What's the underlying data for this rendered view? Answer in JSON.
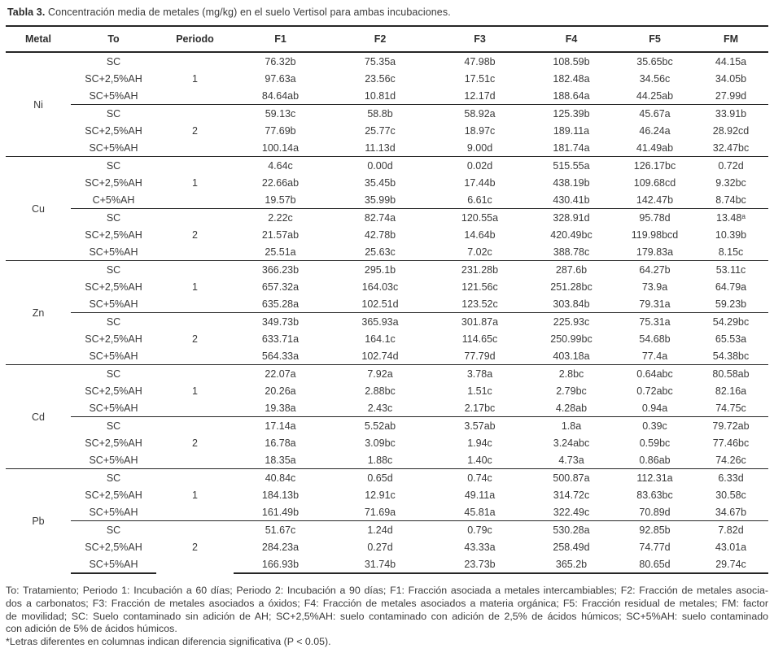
{
  "title": {
    "label": "Tabla 3.",
    "text": "Concentración media de metales (mg/kg) en el suelo Vertisol para ambas incubaciones."
  },
  "table": {
    "columns": [
      "Metal",
      "To",
      "Periodo",
      "F1",
      "F2",
      "F3",
      "F4",
      "F5",
      "FM"
    ],
    "sections": [
      {
        "metal": "Ni",
        "periods": [
          {
            "label": "1",
            "rows": [
              {
                "to": "SC",
                "values": [
                  "76.32b",
                  "75.35a",
                  "47.98b",
                  "108.59b",
                  "35.65bc",
                  "44.15a"
                ]
              },
              {
                "to": "SC+2,5%AH",
                "values": [
                  "97.63a",
                  "23.56c",
                  "17.51c",
                  "182.48a",
                  "34.56c",
                  "34.05b"
                ]
              },
              {
                "to": "SC+5%AH",
                "values": [
                  "84.64ab",
                  "10.81d",
                  "12.17d",
                  "188.64a",
                  "44.25ab",
                  "27.99d"
                ]
              }
            ]
          },
          {
            "label": "2",
            "rows": [
              {
                "to": "SC",
                "values": [
                  "59.13c",
                  "58.8b",
                  "58.92a",
                  "125.39b",
                  "45.67a",
                  "33.91b"
                ]
              },
              {
                "to": "SC+2,5%AH",
                "values": [
                  "77.69b",
                  "25.77c",
                  "18.97c",
                  "189.11a",
                  "46.24a",
                  "28.92cd"
                ]
              },
              {
                "to": "SC+5%AH",
                "values": [
                  "100.14a",
                  "11.13d",
                  "9.00d",
                  "181.74a",
                  "41.49ab",
                  "32.47bc"
                ]
              }
            ]
          }
        ]
      },
      {
        "metal": "Cu",
        "periods": [
          {
            "label": "1",
            "rows": [
              {
                "to": "SC",
                "values": [
                  "4.64c",
                  "0.00d",
                  "0.02d",
                  "515.55a",
                  "126.17bc",
                  "0.72d"
                ]
              },
              {
                "to": "SC+2,5%AH",
                "values": [
                  "22.66ab",
                  "35.45b",
                  "17.44b",
                  "438.19b",
                  "109.68cd",
                  "9.32bc"
                ]
              },
              {
                "to": "C+5%AH",
                "values": [
                  "19.57b",
                  "35.99b",
                  "6.61c",
                  "430.41b",
                  "142.47b",
                  "8.74bc"
                ]
              }
            ]
          },
          {
            "label": "2",
            "rows": [
              {
                "to": "SC",
                "values": [
                  "2.22c",
                  "82.74a",
                  "120.55a",
                  "328.91d",
                  "95.78d",
                  "13.48ᵃ"
                ]
              },
              {
                "to": "SC+2,5%AH",
                "values": [
                  "21.57ab",
                  "42.78b",
                  "14.64b",
                  "420.49bc",
                  "119.98bcd",
                  "10.39b"
                ]
              },
              {
                "to": "SC+5%AH",
                "values": [
                  "25.51a",
                  "25.63c",
                  "7.02c",
                  "388.78c",
                  "179.83a",
                  "8.15c"
                ]
              }
            ]
          }
        ]
      },
      {
        "metal": "Zn",
        "periods": [
          {
            "label": "1",
            "rows": [
              {
                "to": "SC",
                "values": [
                  "366.23b",
                  "295.1b",
                  "231.28b",
                  "287.6b",
                  "64.27b",
                  "53.11c"
                ]
              },
              {
                "to": "SC+2,5%AH",
                "values": [
                  "657.32a",
                  "164.03c",
                  "121.56c",
                  "251.28bc",
                  "73.9a",
                  "64.79a"
                ]
              },
              {
                "to": "SC+5%AH",
                "values": [
                  "635.28a",
                  "102.51d",
                  "123.52c",
                  "303.84b",
                  "79.31a",
                  "59.23b"
                ]
              }
            ]
          },
          {
            "label": "2",
            "rows": [
              {
                "to": "SC",
                "values": [
                  "349.73b",
                  "365.93a",
                  "301.87a",
                  "225.93c",
                  "75.31a",
                  "54.29bc"
                ]
              },
              {
                "to": "SC+2,5%AH",
                "values": [
                  "633.71a",
                  "164.1c",
                  "114.65c",
                  "250.99bc",
                  "54.68b",
                  "65.53a"
                ]
              },
              {
                "to": "SC+5%AH",
                "values": [
                  "564.33a",
                  "102.74d",
                  "77.79d",
                  "403.18a",
                  "77.4a",
                  "54.38bc"
                ]
              }
            ]
          }
        ]
      },
      {
        "metal": "Cd",
        "periods": [
          {
            "label": "1",
            "rows": [
              {
                "to": "SC",
                "values": [
                  "22.07a",
                  "7.92a",
                  "3.78a",
                  "2.8bc",
                  "0.64abc",
                  "80.58ab"
                ]
              },
              {
                "to": "SC+2,5%AH",
                "values": [
                  "20.26a",
                  "2.88bc",
                  "1.51c",
                  "2.79bc",
                  "0.72abc",
                  "82.16a"
                ]
              },
              {
                "to": "SC+5%AH",
                "values": [
                  "19.38a",
                  "2.43c",
                  "2.17bc",
                  "4.28ab",
                  "0.94a",
                  "74.75c"
                ]
              }
            ]
          },
          {
            "label": "2",
            "rows": [
              {
                "to": "SC",
                "values": [
                  "17.14a",
                  "5.52ab",
                  "3.57ab",
                  "1.8a",
                  "0.39c",
                  "79.72ab"
                ]
              },
              {
                "to": "SC+2,5%AH",
                "values": [
                  "16.78a",
                  "3.09bc",
                  "1.94c",
                  "3.24abc",
                  "0.59bc",
                  "77.46bc"
                ]
              },
              {
                "to": "SC+5%AH",
                "values": [
                  "18.35a",
                  "1.88c",
                  "1.40c",
                  "4.73a",
                  "0.86ab",
                  "74.26c"
                ]
              }
            ]
          }
        ]
      },
      {
        "metal": "Pb",
        "periods": [
          {
            "label": "1",
            "rows": [
              {
                "to": "SC",
                "values": [
                  "40.84c",
                  "0.65d",
                  "0.74c",
                  "500.87a",
                  "112.31a",
                  "6.33d"
                ]
              },
              {
                "to": "SC+2,5%AH",
                "values": [
                  "184.13b",
                  "12.91c",
                  "49.11a",
                  "314.72c",
                  "83.63bc",
                  "30.58c"
                ]
              },
              {
                "to": "SC+5%AH",
                "values": [
                  "161.49b",
                  "71.69a",
                  "45.81a",
                  "322.49c",
                  "70.89d",
                  "34.67b"
                ]
              }
            ]
          },
          {
            "label": "2",
            "rows": [
              {
                "to": "SC",
                "values": [
                  "51.67c",
                  "1.24d",
                  "0.79c",
                  "530.28a",
                  "92.85b",
                  "7.82d"
                ]
              },
              {
                "to": "SC+2,5%AH",
                "values": [
                  "284.23a",
                  "0.27d",
                  "43.33a",
                  "258.49d",
                  "74.77d",
                  "43.01a"
                ]
              },
              {
                "to": "SC+5%AH",
                "values": [
                  "166.93b",
                  "31.74b",
                  "23.73b",
                  "365.2b",
                  "80.65d",
                  "29.74c"
                ]
              }
            ]
          }
        ]
      }
    ]
  },
  "footnotes": {
    "paragraph_lines": [
      "To: Tratamiento; Periodo 1: Incubación a 60 días; Periodo 2: Incubación a 90 días; F1: Fracción asociada a metales intercambiables; F2: Fracción de metales asocia-",
      "dos a carbonatos; F3: Fracción de metales asociados a óxidos; F4: Fracción de metales asociados a materia orgánica; F5: Fracción residual de metales; FM: factor",
      "de movilidad; SC: Suelo contaminado sin adición de AH; SC+2,5%AH: suelo contaminado con adición de 2,5% de ácidos húmicos; SC+5%AH: suelo contaminado",
      "con adición de 5% de ácidos húmicos."
    ],
    "significance_note": "*Letras diferentes en columnas indican diferencia significativa (P < 0.05)."
  }
}
